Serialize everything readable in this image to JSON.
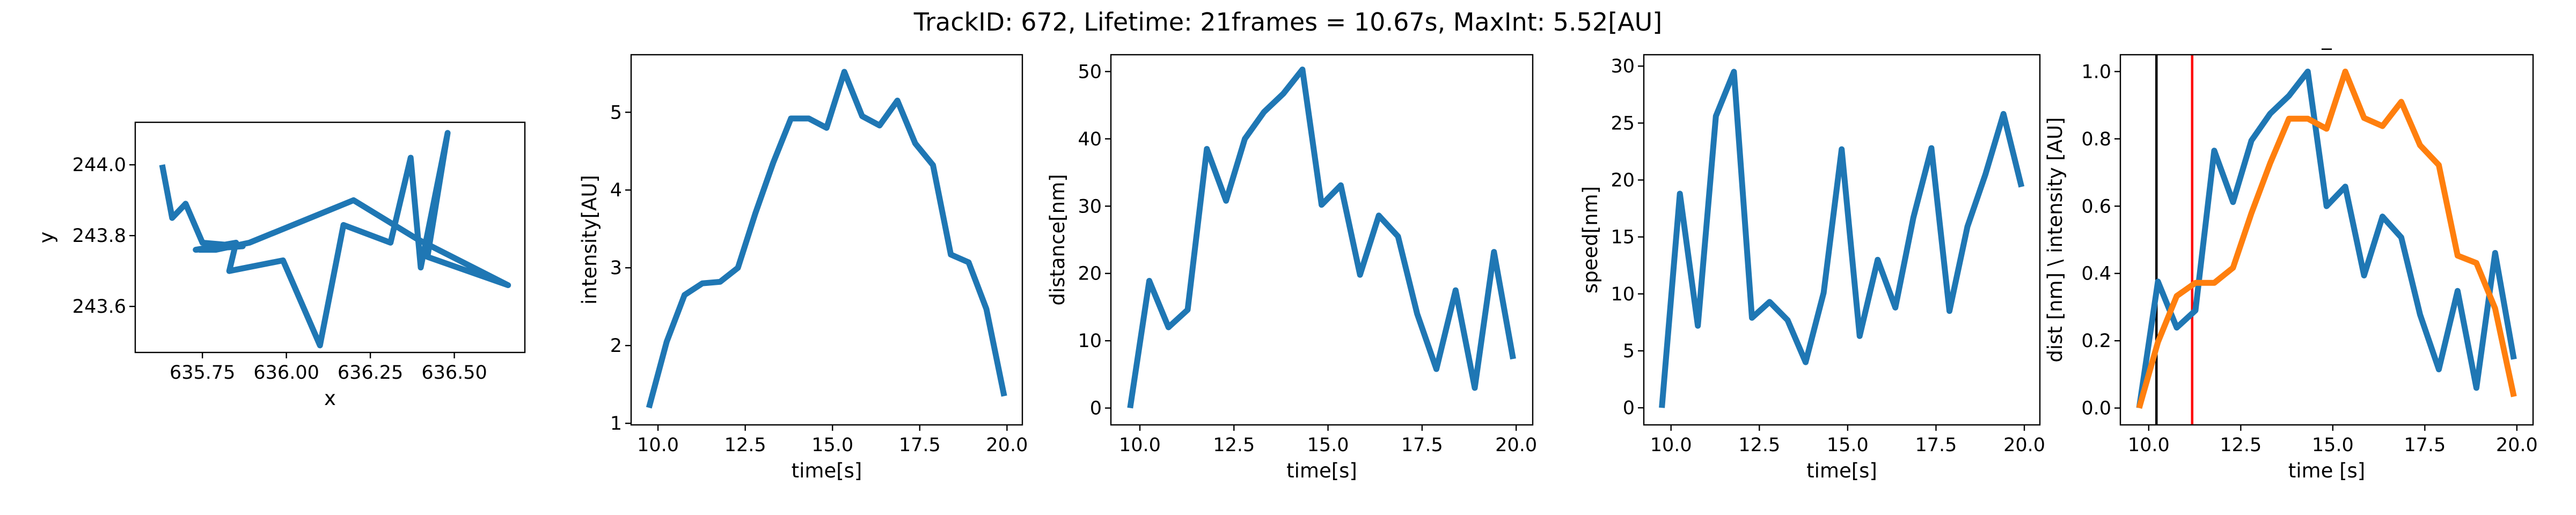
{
  "figure": {
    "title": "TrackID: 672, Lifetime: 21frames = 10.67s, MaxInt: 5.52[AU]"
  },
  "chart_data": [
    {
      "type": "line",
      "xlabel": "x",
      "ylabel": "y",
      "xlim": [
        635.55,
        636.71
      ],
      "ylim": [
        243.47,
        244.12
      ],
      "xticks": [
        "635.75",
        "636.00",
        "636.25",
        "636.50"
      ],
      "yticks": [
        "243.6",
        "243.8",
        "244.0"
      ],
      "series": [
        {
          "color": "#1f77b4",
          "x": [
            635.63,
            635.66,
            635.7,
            635.75,
            635.87,
            635.73,
            635.85,
            635.83,
            635.99,
            636.1,
            636.17,
            636.31,
            636.37,
            636.4,
            636.48,
            636.42,
            636.66,
            636.39,
            636.2,
            635.89,
            635.79,
            635.74
          ],
          "y": [
            244.0,
            243.85,
            243.89,
            243.78,
            243.77,
            243.76,
            243.78,
            243.7,
            243.73,
            243.49,
            243.83,
            243.78,
            244.02,
            243.71,
            244.09,
            243.74,
            243.66,
            243.79,
            243.9,
            243.78,
            243.76,
            243.76
          ]
        }
      ]
    },
    {
      "type": "line",
      "xlabel": "time[s]",
      "ylabel": "intensity[AU]",
      "xlim": [
        9.23,
        20.44
      ],
      "ylim": [
        0.98,
        5.74
      ],
      "xticks": [
        "10.0",
        "12.5",
        "15.0",
        "17.5",
        "20.0"
      ],
      "yticks": [
        "1",
        "2",
        "3",
        "4",
        "5"
      ],
      "series": [
        {
          "color": "#1f77b4",
          "x": [
            9.74,
            10.25,
            10.76,
            11.27,
            11.78,
            12.29,
            12.79,
            13.3,
            13.81,
            14.32,
            14.83,
            15.34,
            15.85,
            16.35,
            16.86,
            17.37,
            17.88,
            18.39,
            18.9,
            19.41,
            19.92
          ],
          "y": [
            1.2,
            2.05,
            2.65,
            2.8,
            2.82,
            3.0,
            3.7,
            4.35,
            4.92,
            4.92,
            4.8,
            5.52,
            4.95,
            4.83,
            5.15,
            4.6,
            4.32,
            3.17,
            3.07,
            2.47,
            1.35
          ]
        }
      ]
    },
    {
      "type": "line",
      "xlabel": "time[s]",
      "ylabel": "distance[nm]",
      "xlim": [
        9.23,
        20.44
      ],
      "ylim": [
        -2.5,
        52.5
      ],
      "xticks": [
        "10.0",
        "12.5",
        "15.0",
        "17.5",
        "20.0"
      ],
      "yticks": [
        "0",
        "10",
        "20",
        "30",
        "40",
        "50"
      ],
      "series": [
        {
          "color": "#1f77b4",
          "x": [
            9.74,
            10.25,
            10.76,
            11.27,
            11.78,
            12.29,
            12.79,
            13.3,
            13.81,
            14.32,
            14.83,
            15.34,
            15.85,
            16.35,
            16.86,
            17.37,
            17.88,
            18.39,
            18.9,
            19.41,
            19.92
          ],
          "y": [
            0,
            18.9,
            12.0,
            14.6,
            38.5,
            30.8,
            40.0,
            44.0,
            46.7,
            50.3,
            30.2,
            33.1,
            19.8,
            28.6,
            25.5,
            14.0,
            5.8,
            17.5,
            3.0,
            23.2,
            7.3
          ]
        }
      ]
    },
    {
      "type": "line",
      "xlabel": "time[s]",
      "ylabel": "speed[nm]",
      "xlim": [
        9.23,
        20.44
      ],
      "ylim": [
        -1.5,
        31.0
      ],
      "xticks": [
        "10.0",
        "12.5",
        "15.0",
        "17.5",
        "20.0"
      ],
      "yticks": [
        "0",
        "5",
        "10",
        "15",
        "20",
        "25",
        "30"
      ],
      "series": [
        {
          "color": "#1f77b4",
          "x": [
            9.74,
            10.25,
            10.76,
            11.27,
            11.78,
            12.29,
            12.79,
            13.3,
            13.81,
            14.32,
            14.83,
            15.34,
            15.85,
            16.35,
            16.86,
            17.37,
            17.88,
            18.39,
            18.9,
            19.41,
            19.92
          ],
          "y": [
            0,
            18.8,
            7.2,
            25.6,
            29.5,
            7.9,
            9.3,
            7.7,
            4.0,
            10.1,
            22.7,
            6.3,
            13.0,
            8.8,
            16.7,
            22.8,
            8.5,
            15.9,
            20.5,
            25.8,
            19.4
          ]
        }
      ]
    },
    {
      "type": "line",
      "title": "_",
      "xlabel": "time [s]",
      "ylabel": "dist [nm] \\ intensity [AU]",
      "xlim": [
        9.23,
        20.44
      ],
      "ylim": [
        -0.05,
        1.05
      ],
      "xticks": [
        "10.0",
        "12.5",
        "15.0",
        "17.5",
        "20.0"
      ],
      "yticks": [
        "0.0",
        "0.2",
        "0.4",
        "0.6",
        "0.8",
        "1.0"
      ],
      "vlines": [
        {
          "x": 10.21,
          "color": "#000000"
        },
        {
          "x": 11.18,
          "color": "#ff0000"
        }
      ],
      "series": [
        {
          "color": "#1f77b4",
          "x": [
            9.74,
            10.25,
            10.76,
            11.27,
            11.78,
            12.29,
            12.79,
            13.3,
            13.81,
            14.32,
            14.83,
            15.34,
            15.85,
            16.35,
            16.86,
            17.37,
            17.88,
            18.39,
            18.9,
            19.41,
            19.92
          ],
          "y": [
            0,
            0.376,
            0.239,
            0.29,
            0.765,
            0.612,
            0.795,
            0.875,
            0.928,
            1.0,
            0.6,
            0.658,
            0.394,
            0.569,
            0.507,
            0.278,
            0.115,
            0.348,
            0.06,
            0.461,
            0.145
          ]
        },
        {
          "color": "#ff7f0e",
          "x": [
            9.74,
            10.25,
            10.76,
            11.27,
            11.78,
            12.29,
            12.79,
            13.3,
            13.81,
            14.32,
            14.83,
            15.34,
            15.85,
            16.35,
            16.86,
            17.37,
            17.88,
            18.39,
            18.9,
            19.41,
            19.92
          ],
          "y": [
            0,
            0.196,
            0.333,
            0.372,
            0.372,
            0.417,
            0.579,
            0.728,
            0.86,
            0.86,
            0.83,
            1.0,
            0.862,
            0.838,
            0.91,
            0.781,
            0.722,
            0.453,
            0.431,
            0.296,
            0.034
          ]
        }
      ]
    }
  ]
}
